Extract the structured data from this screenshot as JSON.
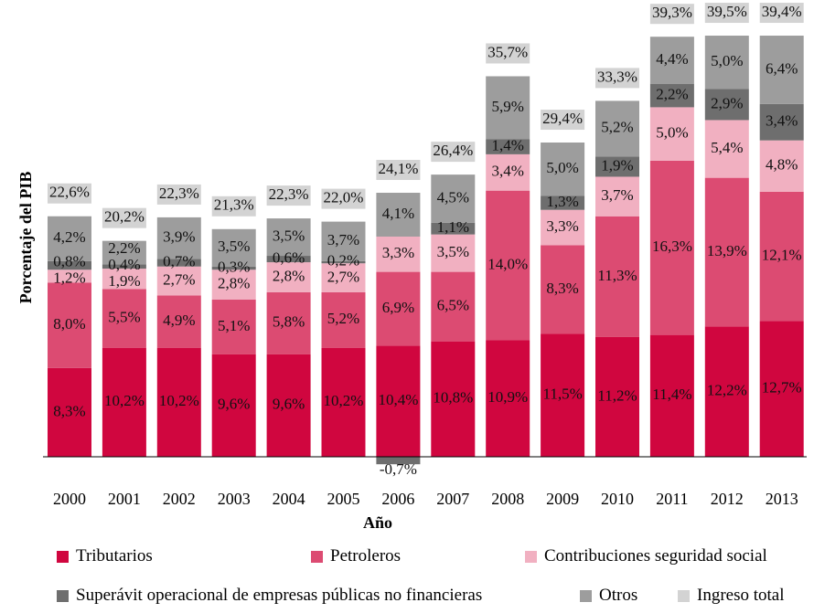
{
  "chart_data": {
    "type": "bar",
    "stacked": true,
    "xlabel": "Año",
    "ylabel": "Porcentaje del PIB",
    "categories": [
      "2000",
      "2001",
      "2002",
      "2003",
      "2004",
      "2005",
      "2006",
      "2007",
      "2008",
      "2009",
      "2010",
      "2011",
      "2012",
      "2013"
    ],
    "series": [
      {
        "name": "Tributarios",
        "color": "#d0063f",
        "values": [
          8.3,
          10.2,
          10.2,
          9.6,
          9.6,
          10.2,
          10.4,
          10.8,
          10.9,
          11.5,
          11.2,
          11.4,
          12.2,
          12.7
        ],
        "labels": [
          "8,3%",
          "10,2%",
          "10,2%",
          "9,6%",
          "9,6%",
          "10,2%",
          "10,4%",
          "10,8%",
          "10,9%",
          "11,5%",
          "11,2%",
          "11,4%",
          "12,2%",
          "12,7%"
        ]
      },
      {
        "name": "Petroleros",
        "color": "#dc4b72",
        "values": [
          8.0,
          5.5,
          4.9,
          5.1,
          5.8,
          5.2,
          6.9,
          6.5,
          14.0,
          8.3,
          11.3,
          16.3,
          13.9,
          12.1
        ],
        "labels": [
          "8,0%",
          "5,5%",
          "4,9%",
          "5,1%",
          "5,8%",
          "5,2%",
          "6,9%",
          "6,5%",
          "14,0%",
          "8,3%",
          "11,3%",
          "16,3%",
          "13,9%",
          "12,1%"
        ]
      },
      {
        "name": "Contribuciones seguridad social",
        "color": "#f1b0c1",
        "values": [
          1.2,
          1.9,
          2.7,
          2.8,
          2.8,
          2.7,
          3.3,
          3.5,
          3.4,
          3.3,
          3.7,
          5.0,
          5.4,
          4.8
        ],
        "labels": [
          "1,2%",
          "1,9%",
          "2,7%",
          "2,8%",
          "2,8%",
          "2,7%",
          "3,3%",
          "3,5%",
          "3,4%",
          "3,3%",
          "3,7%",
          "5,0%",
          "5,4%",
          "4,8%"
        ]
      },
      {
        "name": "Superávit operacional de empresas públicas no financieras",
        "color": "#6e6e6e",
        "values": [
          0.8,
          0.4,
          0.7,
          0.3,
          0.6,
          0.2,
          -0.7,
          1.1,
          1.4,
          1.3,
          1.9,
          2.2,
          2.9,
          3.4
        ],
        "labels": [
          "0,8%",
          "0,4%",
          "0,7%",
          "0,3%",
          "0,6%",
          "0,2%",
          "-0,7%",
          "1,1%",
          "1,4%",
          "1,3%",
          "1,9%",
          "2,2%",
          "2,9%",
          "3,4%"
        ]
      },
      {
        "name": "Otros",
        "color": "#9d9d9d",
        "values": [
          4.2,
          2.2,
          3.9,
          3.5,
          3.5,
          3.7,
          4.1,
          4.5,
          5.9,
          5.0,
          5.2,
          4.4,
          5.0,
          6.4
        ],
        "labels": [
          "4,2%",
          "2,2%",
          "3,9%",
          "3,5%",
          "3,5%",
          "3,7%",
          "4,1%",
          "4,5%",
          "5,9%",
          "5,0%",
          "5,2%",
          "4,4%",
          "5,0%",
          "6,4%"
        ]
      },
      {
        "name": "Ingreso total",
        "color": "#d3d3d3",
        "values": [
          22.6,
          20.2,
          22.3,
          21.3,
          22.3,
          22.0,
          24.1,
          26.4,
          35.7,
          29.4,
          33.3,
          39.3,
          39.5,
          39.4
        ],
        "labels": [
          "22,6%",
          "20,2%",
          "22,3%",
          "21,3%",
          "22,3%",
          "22,0%",
          "24,1%",
          "26,4%",
          "35,7%",
          "29,4%",
          "33,3%",
          "39,3%",
          "39,5%",
          "39,4%"
        ]
      }
    ],
    "legend_position": "bottom",
    "grid": false
  }
}
